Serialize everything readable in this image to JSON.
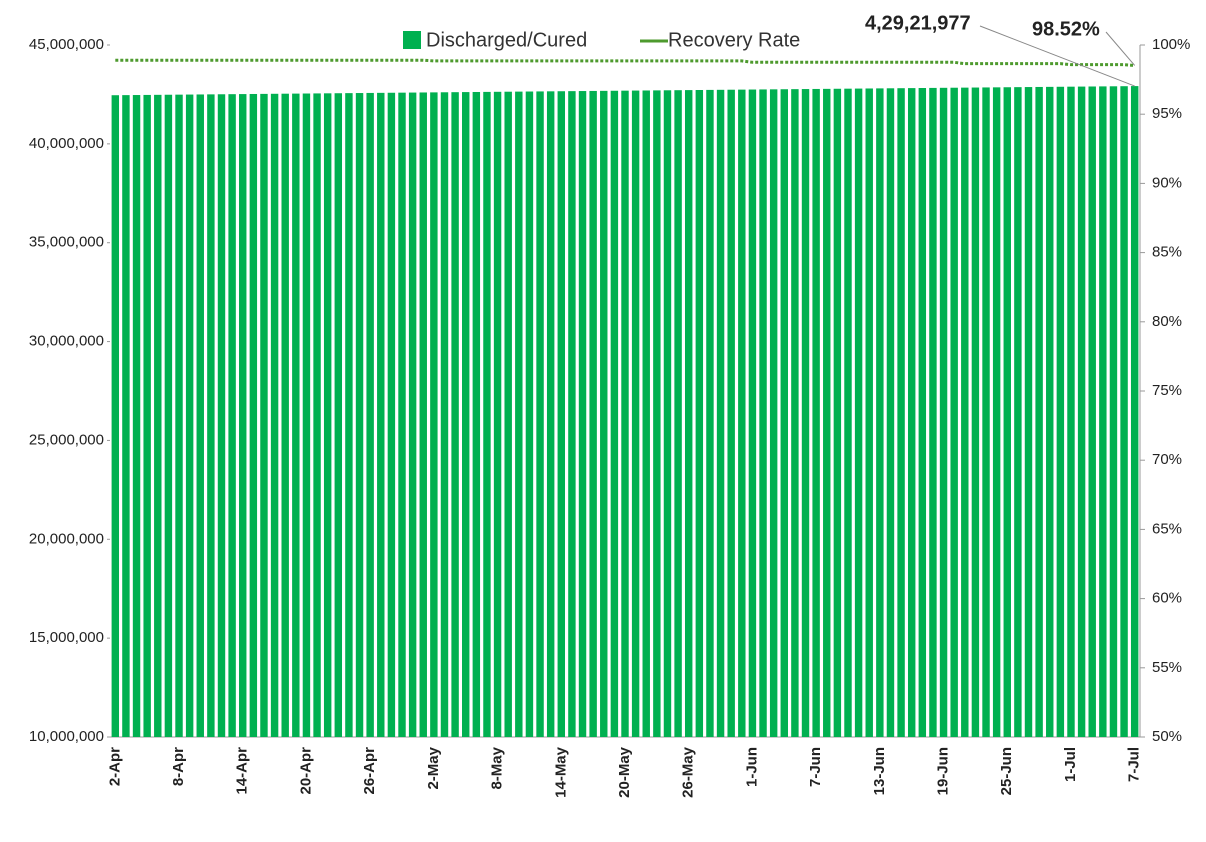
{
  "chart_data": {
    "type": "bar_line",
    "legend": "top",
    "annotations": [
      "4,29,21,977",
      "98.52%"
    ],
    "categories": [
      "2-Apr",
      null,
      null,
      null,
      null,
      null,
      "8-Apr",
      null,
      null,
      null,
      null,
      null,
      "14-Apr",
      null,
      null,
      null,
      null,
      null,
      "20-Apr",
      null,
      null,
      null,
      null,
      null,
      "26-Apr",
      null,
      null,
      null,
      null,
      null,
      "2-May",
      null,
      null,
      null,
      null,
      null,
      "8-May",
      null,
      null,
      null,
      null,
      null,
      "14-May",
      null,
      null,
      null,
      null,
      null,
      "20-May",
      null,
      null,
      null,
      null,
      null,
      "26-May",
      null,
      null,
      null,
      null,
      null,
      "1-Jun",
      null,
      null,
      null,
      null,
      null,
      "7-Jun",
      null,
      null,
      null,
      null,
      null,
      "13-Jun",
      null,
      null,
      null,
      null,
      null,
      "19-Jun",
      null,
      null,
      null,
      null,
      null,
      "25-Jun",
      null,
      null,
      null,
      null,
      null,
      "1-Jul",
      null,
      null,
      null,
      null,
      null,
      "7-Jul"
    ],
    "series": [
      {
        "name": "Discharged/Cured",
        "color": "#00b050",
        "values": [
          42460000,
          42464800,
          42469600,
          42474400,
          42479200,
          42484000,
          42488800,
          42493600,
          42498400,
          42503200,
          42508000,
          42512800,
          42517600,
          42522400,
          42527200,
          42532000,
          42536800,
          42541600,
          42546400,
          42551200,
          42556000,
          42560800,
          42565600,
          42570400,
          42575200,
          42580000,
          42584800,
          42589600,
          42594400,
          42599200,
          42604000,
          42608800,
          42613600,
          42618400,
          42623200,
          42628000,
          42632800,
          42637600,
          42642400,
          42647200,
          42652000,
          42656800,
          42661600,
          42666400,
          42671200,
          42676000,
          42680800,
          42685600,
          42690400,
          42695200,
          42700000,
          42704800,
          42709600,
          42714400,
          42719200,
          42724000,
          42728800,
          42733600,
          42738400,
          42743200,
          42748000,
          42752800,
          42757600,
          42762400,
          42767200,
          42772000,
          42776800,
          42781600,
          42786400,
          42791200,
          42796000,
          42800800,
          42805600,
          42810400,
          42815200,
          42820000,
          42824800,
          42829600,
          42834400,
          42839200,
          42844000,
          42848800,
          42853600,
          42858400,
          42863200,
          42868000,
          42872800,
          42877600,
          42882400,
          42887200,
          42892000,
          42896800,
          42901600,
          42906400,
          42911200,
          42916000,
          42921977
        ]
      },
      {
        "name": "Recovery Rate",
        "color": "#4e9a2e",
        "axis": "y2",
        "values": [
          98.9,
          98.9,
          98.9,
          98.9,
          98.9,
          98.9,
          98.9,
          98.9,
          98.9,
          98.9,
          98.9,
          98.9,
          98.9,
          98.9,
          98.9,
          98.9,
          98.9,
          98.9,
          98.9,
          98.9,
          98.9,
          98.9,
          98.9,
          98.9,
          98.9,
          98.9,
          98.9,
          98.9,
          98.9,
          98.9,
          98.85,
          98.85,
          98.85,
          98.85,
          98.85,
          98.85,
          98.85,
          98.85,
          98.85,
          98.85,
          98.85,
          98.85,
          98.85,
          98.85,
          98.85,
          98.85,
          98.85,
          98.85,
          98.85,
          98.85,
          98.85,
          98.85,
          98.85,
          98.85,
          98.85,
          98.85,
          98.85,
          98.85,
          98.85,
          98.85,
          98.75,
          98.75,
          98.75,
          98.75,
          98.75,
          98.75,
          98.75,
          98.75,
          98.75,
          98.75,
          98.75,
          98.75,
          98.75,
          98.75,
          98.75,
          98.75,
          98.75,
          98.75,
          98.75,
          98.75,
          98.65,
          98.65,
          98.65,
          98.65,
          98.65,
          98.65,
          98.65,
          98.65,
          98.65,
          98.65,
          98.58,
          98.58,
          98.58,
          98.58,
          98.58,
          98.58,
          98.52
        ]
      }
    ],
    "ylim": [
      10000000,
      45000000
    ],
    "yticks": [
      {
        "value": 10000000,
        "label": "10,000,000"
      },
      {
        "value": 15000000,
        "label": "15,000,000"
      },
      {
        "value": 20000000,
        "label": "20,000,000"
      },
      {
        "value": 25000000,
        "label": "25,000,000"
      },
      {
        "value": 30000000,
        "label": "30,000,000"
      },
      {
        "value": 35000000,
        "label": "35,000,000"
      },
      {
        "value": 40000000,
        "label": "40,000,000"
      },
      {
        "value": 45000000,
        "label": "45,000,000"
      }
    ],
    "y2lim": [
      50,
      100
    ],
    "y2ticks": [
      {
        "value": 50,
        "label": "50%"
      },
      {
        "value": 55,
        "label": "55%"
      },
      {
        "value": 60,
        "label": "60%"
      },
      {
        "value": 65,
        "label": "65%"
      },
      {
        "value": 70,
        "label": "70%"
      },
      {
        "value": 75,
        "label": "75%"
      },
      {
        "value": 80,
        "label": "80%"
      },
      {
        "value": 85,
        "label": "85%"
      },
      {
        "value": 90,
        "label": "90%"
      },
      {
        "value": 95,
        "label": "95%"
      },
      {
        "value": 100,
        "label": "100%"
      }
    ]
  }
}
